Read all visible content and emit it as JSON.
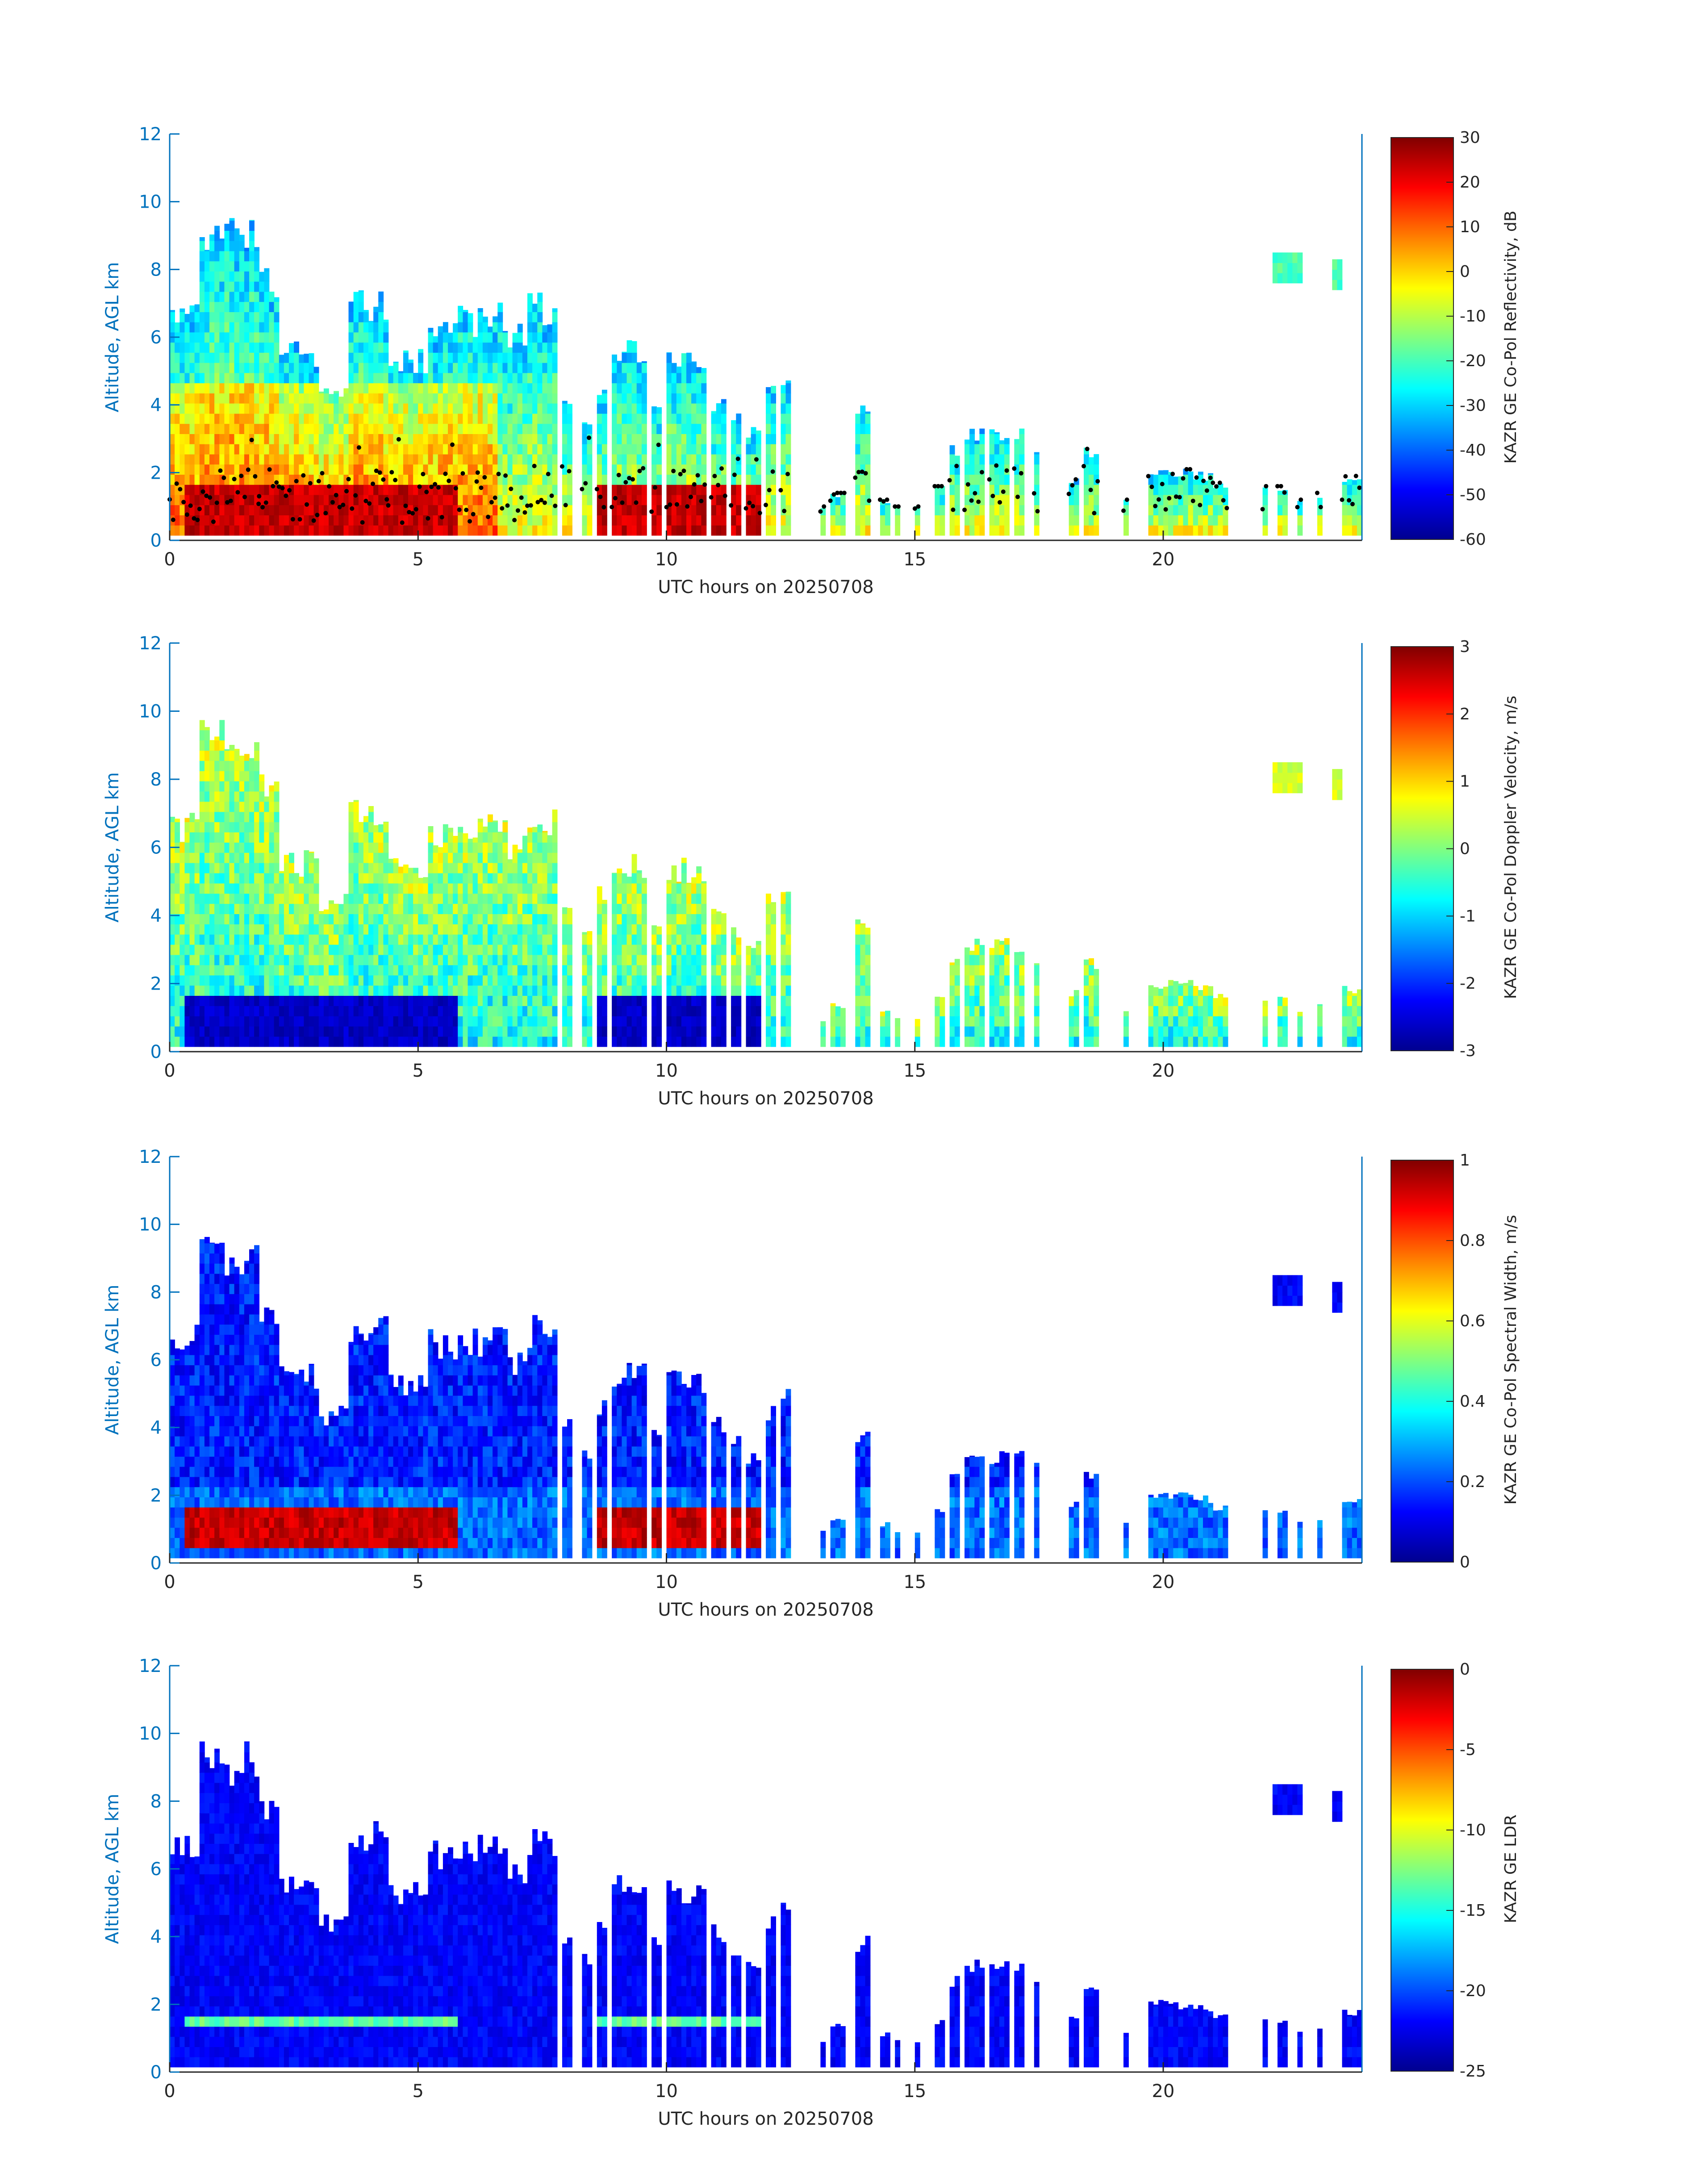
{
  "chart_data": [
    {
      "type": "heatmap",
      "xlabel": "UTC hours on 20250708",
      "ylabel": "Altitude, AGL km",
      "xlim": [
        0,
        24
      ],
      "ylim": [
        0,
        12
      ],
      "xticks": [
        "0",
        "5",
        "10",
        "15",
        "20"
      ],
      "yticks": [
        "0",
        "2",
        "4",
        "6",
        "8",
        "10",
        "12"
      ],
      "colorbar_label": "KAZR GE Co-Pol Reflectivity, dB",
      "colorbar_range": [
        -60,
        30
      ],
      "colorbar_ticks": [
        "30",
        "20",
        "10",
        "0",
        "-10",
        "-20",
        "-30",
        "-40",
        "-50",
        "-60"
      ],
      "colormap": "jet",
      "overlay": "black dots (cloud base)"
    },
    {
      "type": "heatmap",
      "xlabel": "UTC hours on 20250708",
      "ylabel": "Altitude, AGL km",
      "xlim": [
        0,
        24
      ],
      "ylim": [
        0,
        12
      ],
      "xticks": [
        "0",
        "5",
        "10",
        "15",
        "20"
      ],
      "yticks": [
        "0",
        "2",
        "4",
        "6",
        "8",
        "10",
        "12"
      ],
      "colorbar_label": "KAZR GE Co-Pol Doppler Velocity, m/s",
      "colorbar_range": [
        -3,
        3
      ],
      "colorbar_ticks": [
        "3",
        "2",
        "1",
        "0",
        "-1",
        "-2",
        "-3"
      ],
      "colormap": "jet"
    },
    {
      "type": "heatmap",
      "xlabel": "UTC hours on 20250708",
      "ylabel": "Altitude, AGL km",
      "xlim": [
        0,
        24
      ],
      "ylim": [
        0,
        12
      ],
      "xticks": [
        "0",
        "5",
        "10",
        "15",
        "20"
      ],
      "yticks": [
        "0",
        "2",
        "4",
        "6",
        "8",
        "10",
        "12"
      ],
      "colorbar_label": "KAZR GE Co-Pol Spectral Width, m/s",
      "colorbar_range": [
        0,
        1
      ],
      "colorbar_ticks": [
        "1",
        "0.8",
        "0.6",
        "0.4",
        "0.2",
        "0"
      ],
      "colormap": "jet"
    },
    {
      "type": "heatmap",
      "xlabel": "UTC hours on 20250708",
      "ylabel": "Altitude, AGL km",
      "xlim": [
        0,
        24
      ],
      "ylim": [
        0,
        12
      ],
      "xticks": [
        "0",
        "5",
        "10",
        "15",
        "20"
      ],
      "yticks": [
        "0",
        "2",
        "4",
        "6",
        "8",
        "10",
        "12"
      ],
      "colorbar_label": "KAZR GE LDR",
      "colorbar_range": [
        -25,
        0
      ],
      "colorbar_ticks": [
        "0",
        "-5",
        "-10",
        "-15",
        "-20",
        "-25"
      ],
      "colormap": "jet"
    }
  ],
  "colors": {
    "axis_blue": "#0072bd",
    "text_dark": "#262626",
    "jet": [
      "#00008f",
      "#0000ff",
      "#0080ff",
      "#00ffff",
      "#80ff80",
      "#ffff00",
      "#ff8000",
      "#ff0000",
      "#800000"
    ]
  }
}
